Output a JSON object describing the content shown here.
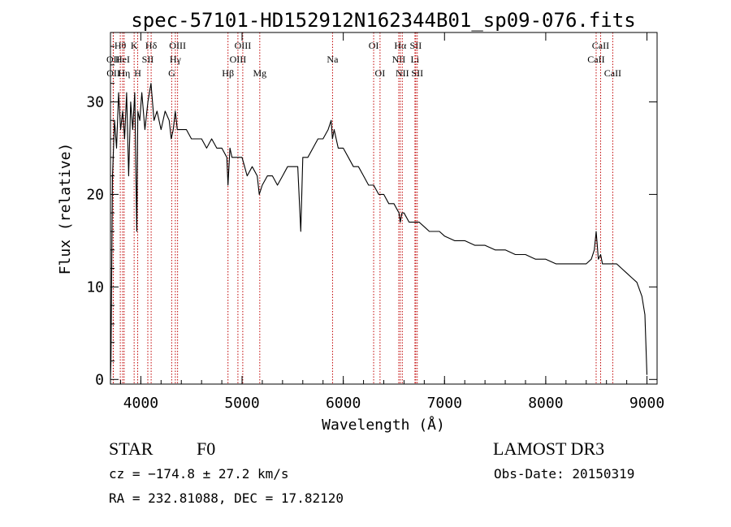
{
  "chart_data": {
    "type": "line",
    "title": "spec-57101-HD152912N162344B01_sp09-076.fits",
    "xlabel": "Wavelength (Å)",
    "ylabel": "Flux (relative)",
    "xlim": [
      3700,
      9100
    ],
    "ylim": [
      -0.5,
      37.5
    ],
    "xticks": [
      4000,
      5000,
      6000,
      7000,
      8000,
      9000
    ],
    "yticks": [
      0,
      10,
      20,
      30
    ],
    "xtick_labels": [
      "4000",
      "5000",
      "6000",
      "7000",
      "8000",
      "9000"
    ],
    "ytick_labels": [
      "0",
      "10",
      "20",
      "30"
    ],
    "grid": false,
    "series": [
      {
        "name": "flux",
        "x": [
          3700,
          3705,
          3720,
          3740,
          3760,
          3780,
          3800,
          3820,
          3840,
          3860,
          3880,
          3900,
          3920,
          3940,
          3960,
          3970,
          3990,
          4010,
          4040,
          4070,
          4100,
          4130,
          4160,
          4200,
          4240,
          4280,
          4300,
          4320,
          4340,
          4360,
          4400,
          4450,
          4500,
          4550,
          4600,
          4650,
          4700,
          4750,
          4800,
          4850,
          4861,
          4880,
          4900,
          4950,
          5000,
          5050,
          5100,
          5150,
          5170,
          5200,
          5250,
          5300,
          5350,
          5400,
          5450,
          5500,
          5550,
          5580,
          5600,
          5650,
          5700,
          5750,
          5800,
          5850,
          5880,
          5893,
          5910,
          5950,
          6000,
          6050,
          6100,
          6150,
          6200,
          6250,
          6300,
          6350,
          6400,
          6450,
          6500,
          6550,
          6563,
          6580,
          6600,
          6650,
          6700,
          6750,
          6800,
          6850,
          6900,
          6950,
          7000,
          7100,
          7200,
          7300,
          7400,
          7500,
          7600,
          7700,
          7800,
          7900,
          8000,
          8100,
          8200,
          8300,
          8400,
          8450,
          8480,
          8498,
          8520,
          8542,
          8560,
          8600,
          8662,
          8700,
          8750,
          8800,
          8850,
          8900,
          8950,
          8980,
          9000
        ],
        "y": [
          0,
          2,
          22,
          28,
          25,
          31,
          27,
          29,
          26,
          31,
          22,
          30,
          27,
          31,
          16,
          29,
          28,
          31,
          27,
          30,
          32,
          28,
          29,
          27,
          29,
          28,
          26,
          27,
          29,
          27,
          27,
          27,
          26,
          26,
          26,
          25,
          26,
          25,
          25,
          24,
          21,
          25,
          24,
          24,
          24,
          22,
          23,
          22,
          20,
          21,
          22,
          22,
          21,
          22,
          23,
          23,
          23,
          16,
          24,
          24,
          25,
          26,
          26,
          27,
          28,
          26,
          27,
          25,
          25,
          24,
          23,
          23,
          22,
          21,
          21,
          20,
          20,
          19,
          19,
          18,
          17,
          18,
          18,
          17,
          17,
          17,
          16.5,
          16,
          16,
          16,
          15.5,
          15,
          15,
          14.5,
          14.5,
          14,
          14,
          13.5,
          13.5,
          13,
          13,
          12.5,
          12.5,
          12.5,
          12.5,
          13,
          14,
          16,
          13,
          13.5,
          12.5,
          12.5,
          12.5,
          12.5,
          12,
          11.5,
          11,
          10.5,
          9,
          7,
          0.5
        ]
      }
    ],
    "lines": [
      {
        "label": "Hθ",
        "x": 3797,
        "row": 1
      },
      {
        "label": "OII",
        "x": 3727,
        "row": 2
      },
      {
        "label": "OII",
        "x": 3729,
        "row": 3
      },
      {
        "label": "HeI",
        "x": 3820,
        "row": 2
      },
      {
        "label": "Hη",
        "x": 3835,
        "row": 3
      },
      {
        "label": "K",
        "x": 3934,
        "row": 1
      },
      {
        "label": "H",
        "x": 3969,
        "row": 3
      },
      {
        "label": "SII",
        "x": 4069,
        "row": 2
      },
      {
        "label": "Hδ",
        "x": 4102,
        "row": 1
      },
      {
        "label": "G",
        "x": 4305,
        "row": 3
      },
      {
        "label": "Hγ",
        "x": 4341,
        "row": 2
      },
      {
        "label": "OIII",
        "x": 4363,
        "row": 1
      },
      {
        "label": "Hβ",
        "x": 4861,
        "row": 3
      },
      {
        "label": "OIII",
        "x": 4959,
        "row": 2
      },
      {
        "label": "OIII",
        "x": 5007,
        "row": 1
      },
      {
        "label": "Mg",
        "x": 5175,
        "row": 3
      },
      {
        "label": "Na",
        "x": 5894,
        "row": 2
      },
      {
        "label": "OI",
        "x": 6300,
        "row": 1
      },
      {
        "label": "OI",
        "x": 6363,
        "row": 3
      },
      {
        "label": "NII",
        "x": 6548,
        "row": 2
      },
      {
        "label": "Hα",
        "x": 6563,
        "row": 1
      },
      {
        "label": "NII",
        "x": 6583,
        "row": 3
      },
      {
        "label": "SII",
        "x": 6716,
        "row": 1
      },
      {
        "label": "Li",
        "x": 6708,
        "row": 2
      },
      {
        "label": "SII",
        "x": 6731,
        "row": 3
      },
      {
        "label": "CaII",
        "x": 8498,
        "row": 2
      },
      {
        "label": "CaII",
        "x": 8542,
        "row": 1
      },
      {
        "label": "CaII",
        "x": 8662,
        "row": 3
      }
    ]
  },
  "info": {
    "obj_class": "STAR",
    "subclass": "F0",
    "survey": "LAMOST DR3",
    "cz": "cz = −174.8 ± 27.2 km/s",
    "obs_date": "Obs-Date: 20150319",
    "radec": "RA = 232.81088, DEC =  17.82120"
  },
  "colors": {
    "line_marker": "#c00000",
    "spectrum": "#000000"
  }
}
